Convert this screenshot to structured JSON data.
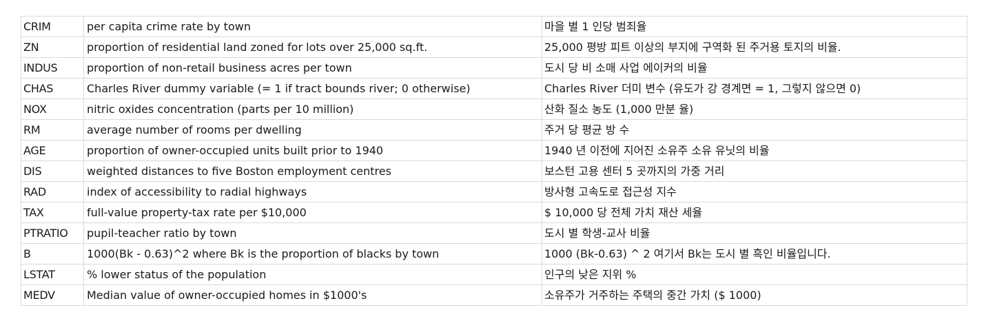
{
  "rows": [
    {
      "code": "CRIM",
      "description": "per capita crime rate by town",
      "korean": "마을 별 1 인당 범죄율"
    },
    {
      "code": "ZN",
      "description": "proportion of residential land zoned for lots over 25,000 sq.ft.",
      "korean": "25,000 평방 피트 이상의 부지에 구역화 된 주거용 토지의 비율."
    },
    {
      "code": "INDUS",
      "description": "proportion of non-retail business acres per town",
      "korean": "도시 당 비 소매 사업 에이커의 비율"
    },
    {
      "code": "CHAS",
      "description": "Charles River dummy variable (= 1 if tract bounds river; 0 otherwise)",
      "korean": "Charles River 더미 변수 (유도가 강 경계면 = 1, 그렇지 않으면 0)"
    },
    {
      "code": "NOX",
      "description": "nitric oxides concentration (parts per 10 million)",
      "korean": "산화 질소 농도 (1,000 만분 율)"
    },
    {
      "code": "RM",
      "description": "average number of rooms per dwelling",
      "korean": "주거 당 평균 방 수"
    },
    {
      "code": "AGE",
      "description": "proportion of owner-occupied units built prior to 1940",
      "korean": "1940 년 이전에 지어진 소유주 소유 유닛의 비율"
    },
    {
      "code": "DIS",
      "description": "weighted distances to five Boston employment centres",
      "korean": "보스턴 고용 센터 5 곳까지의 가중 거리"
    },
    {
      "code": "RAD",
      "description": "index of accessibility to radial highways",
      "korean": "방사형 고속도로 접근성 지수"
    },
    {
      "code": "TAX",
      "description": "full-value property-tax rate per $10,000",
      "korean": "$ 10,000 당 전체 가치 재산 세율"
    },
    {
      "code": "PTRATIO",
      "description": "pupil-teacher ratio by town",
      "korean": "도시 별 학생-교사 비율"
    },
    {
      "code": "B",
      "description": "1000(Bk - 0.63)^2 where Bk is the proportion of blacks by town",
      "korean": "1000 (Bk-0.63) ^ 2 여기서 Bk는 도시 별 흑인 비율입니다."
    },
    {
      "code": "LSTAT",
      "description": "% lower status of the population",
      "korean": "인구의 낮은 지위 %"
    },
    {
      "code": "MEDV",
      "description": "Median value of owner-occupied homes in $1000's",
      "korean": "소유주가 거주하는 주택의 중간 가치 ($ 1000)"
    }
  ]
}
